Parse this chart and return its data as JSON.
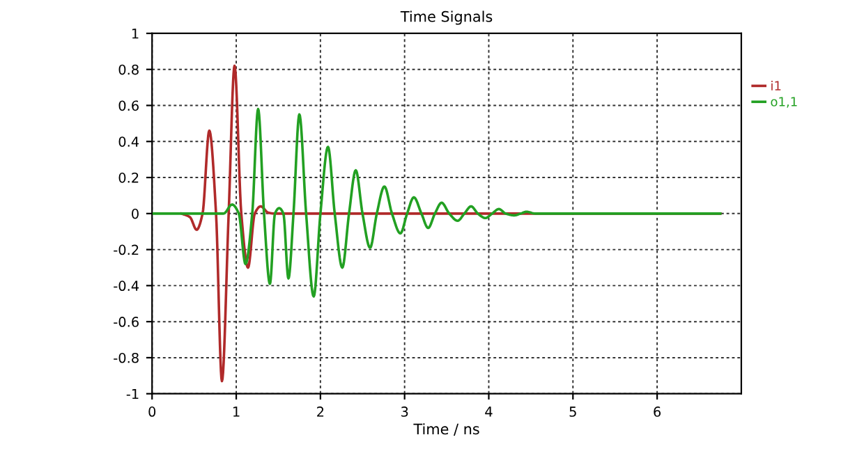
{
  "chart_data": {
    "type": "line",
    "title": "Time Signals",
    "xlabel": "Time / ns",
    "xlim": [
      0,
      7
    ],
    "xticks": [
      0,
      1,
      2,
      3,
      4,
      5,
      6
    ],
    "ylim": [
      -1,
      1
    ],
    "yticks": [
      -1,
      -0.8,
      -0.6,
      -0.4,
      -0.2,
      0,
      0.2,
      0.4,
      0.6,
      0.8,
      1
    ],
    "grid": true,
    "legend": "top right",
    "marker": "none",
    "line_style": "solid",
    "series": [
      {
        "name": "i1",
        "color": "#b02a2a",
        "x": [
          0.35,
          0.45,
          0.53,
          0.6,
          0.68,
          0.76,
          0.83,
          0.91,
          0.98,
          1.06,
          1.14,
          1.22,
          1.29,
          1.38,
          1.45,
          6.75
        ],
        "values": [
          0,
          -0.02,
          -0.09,
          0,
          0.46,
          0,
          -0.93,
          0,
          0.82,
          0,
          -0.3,
          0,
          0.04,
          0.005,
          0,
          0
        ]
      },
      {
        "name": "o1,1",
        "color": "#22a022",
        "x": [
          0.02,
          0.85,
          0.95,
          1.03,
          1.11,
          1.19,
          1.26,
          1.33,
          1.4,
          1.46,
          1.51,
          1.56,
          1.62,
          1.68,
          1.75,
          1.83,
          1.92,
          2.0,
          2.09,
          2.17,
          2.26,
          2.34,
          2.42,
          2.5,
          2.59,
          2.67,
          2.76,
          2.85,
          2.95,
          3.03,
          3.11,
          3.2,
          3.28,
          3.36,
          3.44,
          3.53,
          3.63,
          3.71,
          3.79,
          3.87,
          3.96,
          4.04,
          4.12,
          4.2,
          4.3,
          4.38,
          4.45,
          4.55,
          6.75
        ],
        "values": [
          0,
          0,
          0.05,
          0,
          -0.28,
          0,
          0.58,
          0,
          -0.39,
          0,
          0.03,
          0,
          -0.36,
          0,
          0.55,
          0,
          -0.46,
          0,
          0.37,
          0,
          -0.3,
          0,
          0.24,
          0,
          -0.19,
          0,
          0.15,
          0,
          -0.11,
          0,
          0.09,
          0,
          -0.08,
          0,
          0.06,
          0,
          -0.04,
          0,
          0.04,
          0,
          -0.025,
          0,
          0.025,
          0,
          -0.01,
          0,
          0.01,
          0,
          0
        ]
      }
    ]
  }
}
